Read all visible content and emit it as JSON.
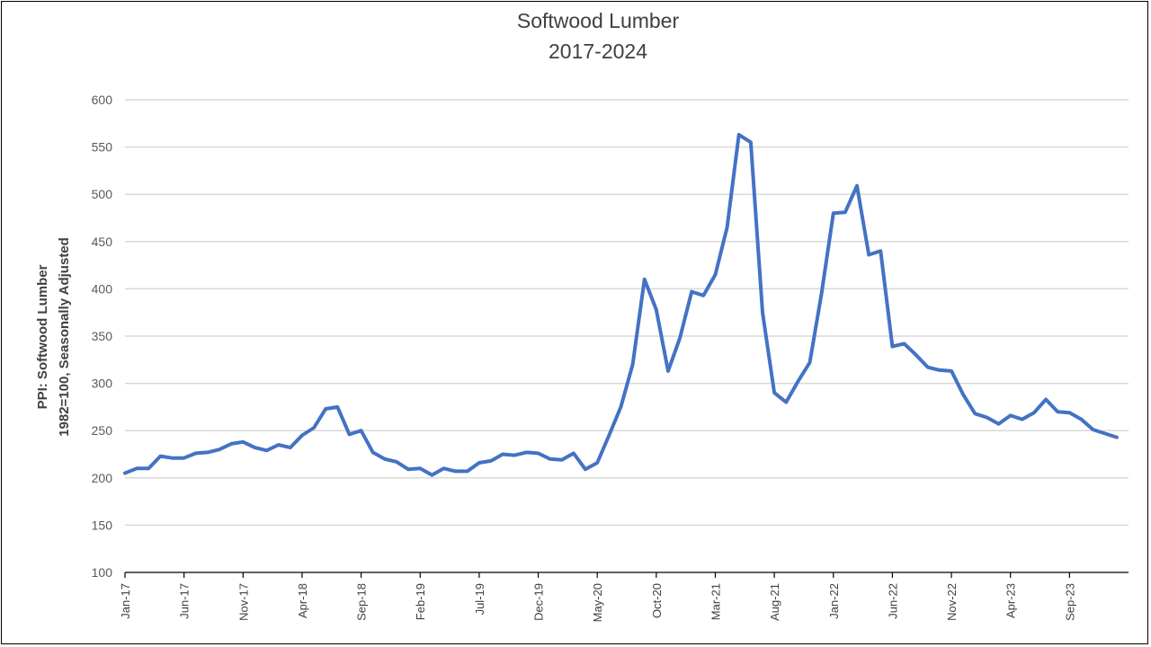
{
  "chart_data": {
    "type": "line",
    "title": "Softwood Lumber",
    "subtitle": "2017-2024",
    "xlabel": "",
    "ylabel": "PPI: Softwood Lumber",
    "ylabel_line2": "1982=100, Seasonally Adjusted",
    "ylim": [
      100,
      600
    ],
    "yticks": [
      100,
      150,
      200,
      250,
      300,
      350,
      400,
      450,
      500,
      550,
      600
    ],
    "grid": true,
    "legend": "none",
    "line_color": "#4472C4",
    "xtick_labels": [
      "Jan-17",
      "Jun-17",
      "Nov-17",
      "Apr-18",
      "Sep-18",
      "Feb-19",
      "Jul-19",
      "Dec-19",
      "May-20",
      "Oct-20",
      "Mar-21",
      "Aug-21",
      "Jan-22",
      "Jun-22",
      "Nov-22",
      "Apr-23",
      "Sep-23"
    ],
    "x": [
      "Jan-17",
      "Feb-17",
      "Mar-17",
      "Apr-17",
      "May-17",
      "Jun-17",
      "Jul-17",
      "Aug-17",
      "Sep-17",
      "Oct-17",
      "Nov-17",
      "Dec-17",
      "Jan-18",
      "Feb-18",
      "Mar-18",
      "Apr-18",
      "May-18",
      "Jun-18",
      "Jul-18",
      "Aug-18",
      "Sep-18",
      "Oct-18",
      "Nov-18",
      "Dec-18",
      "Jan-19",
      "Feb-19",
      "Mar-19",
      "Apr-19",
      "May-19",
      "Jun-19",
      "Jul-19",
      "Aug-19",
      "Sep-19",
      "Oct-19",
      "Nov-19",
      "Dec-19",
      "Jan-20",
      "Feb-20",
      "Mar-20",
      "Apr-20",
      "May-20",
      "Jun-20",
      "Jul-20",
      "Aug-20",
      "Sep-20",
      "Oct-20",
      "Nov-20",
      "Dec-20",
      "Jan-21",
      "Feb-21",
      "Mar-21",
      "Apr-21",
      "May-21",
      "Jun-21",
      "Jul-21",
      "Aug-21",
      "Sep-21",
      "Oct-21",
      "Nov-21",
      "Dec-21",
      "Jan-22",
      "Feb-22",
      "Mar-22",
      "Apr-22",
      "May-22",
      "Jun-22",
      "Jul-22",
      "Aug-22",
      "Sep-22",
      "Oct-22",
      "Nov-22",
      "Dec-22",
      "Jan-23",
      "Feb-23",
      "Mar-23",
      "Apr-23",
      "May-23",
      "Jun-23",
      "Jul-23",
      "Aug-23",
      "Sep-23",
      "Oct-23",
      "Nov-23",
      "Dec-23",
      "Jan-24"
    ],
    "series": [
      {
        "values": [
          205,
          210,
          210,
          223,
          221,
          221,
          226,
          227,
          230,
          236,
          238,
          232,
          229,
          235,
          232,
          245,
          253,
          273,
          275,
          246,
          250,
          227,
          220,
          217,
          209,
          210,
          203,
          210,
          207,
          207,
          216,
          218,
          225,
          224,
          227,
          226,
          220,
          219,
          226,
          209,
          216,
          245,
          275,
          320,
          410,
          378,
          313,
          348,
          397,
          393,
          415,
          465,
          563,
          555,
          375,
          290,
          280,
          302,
          322,
          395,
          480,
          481,
          509,
          436,
          440,
          339,
          342,
          330,
          317,
          314,
          313,
          288,
          268,
          264,
          257,
          266,
          262,
          269,
          283,
          270,
          269,
          262,
          251,
          247,
          243
        ]
      }
    ]
  }
}
